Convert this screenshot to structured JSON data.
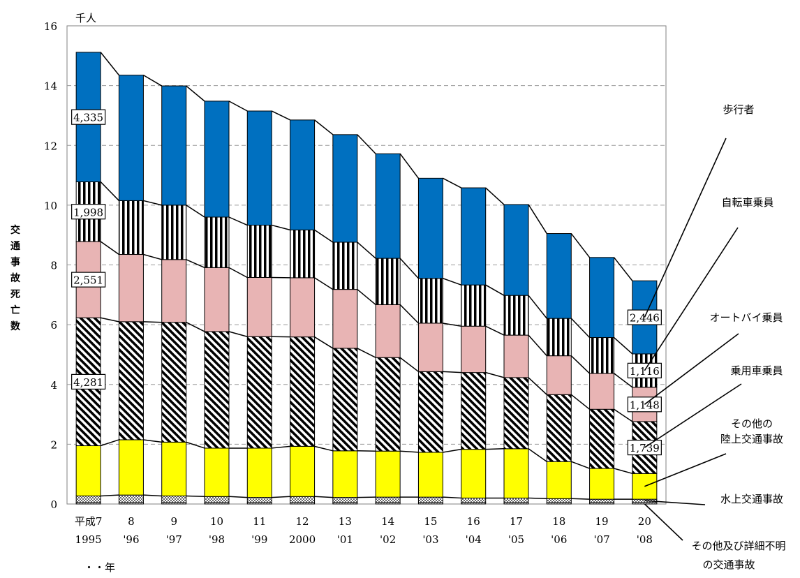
{
  "chart_data": {
    "type": "bar",
    "stacked": true,
    "title": "",
    "ylabel": "交通事故死亡数",
    "yunit": "千人",
    "ylim": [
      0,
      16
    ],
    "yticks": [
      "0",
      "2",
      "4",
      "6",
      "8",
      "10",
      "12",
      "14",
      "16"
    ],
    "grid": "horizontal-dashed",
    "categories": [
      {
        "top": "平成7",
        "bottom": "1995"
      },
      {
        "top": "8",
        "bottom": "'96"
      },
      {
        "top": "9",
        "bottom": "'97"
      },
      {
        "top": "10",
        "bottom": "'98"
      },
      {
        "top": "11",
        "bottom": "'99"
      },
      {
        "top": "12",
        "bottom": "2000"
      },
      {
        "top": "13",
        "bottom": "'01"
      },
      {
        "top": "14",
        "bottom": "'02"
      },
      {
        "top": "15",
        "bottom": "'03"
      },
      {
        "top": "16",
        "bottom": "'04"
      },
      {
        "top": "17",
        "bottom": "'05"
      },
      {
        "top": "18",
        "bottom": "'06"
      },
      {
        "top": "19",
        "bottom": "'07"
      },
      {
        "top": "20",
        "bottom": "'08"
      }
    ],
    "xunit": "・・年",
    "series": [
      {
        "name": "その他及び詳細不明の交通事故",
        "color": "#ffffff",
        "pattern": "cross",
        "values": [
          0.05,
          0.05,
          0.05,
          0.05,
          0.05,
          0.05,
          0.05,
          0.05,
          0.05,
          0.05,
          0.05,
          0.05,
          0.05,
          0.05
        ]
      },
      {
        "name": "水上交通事故",
        "color": "#ffffff",
        "pattern": "check",
        "values": [
          0.22,
          0.25,
          0.22,
          0.2,
          0.17,
          0.2,
          0.17,
          0.18,
          0.18,
          0.15,
          0.15,
          0.13,
          0.11,
          0.11
        ]
      },
      {
        "name": "その他の陸上交通事故",
        "color": "#ffff00",
        "pattern": "solid",
        "values": [
          1.68,
          1.85,
          1.8,
          1.62,
          1.65,
          1.68,
          1.56,
          1.54,
          1.5,
          1.63,
          1.65,
          1.24,
          1.03,
          0.86
        ]
      },
      {
        "name": "乗用車乗員",
        "color": "#ffffff",
        "pattern": "diagonal",
        "values": [
          4.281,
          3.95,
          4.01,
          3.9,
          3.73,
          3.66,
          3.43,
          3.13,
          2.7,
          2.57,
          2.38,
          2.24,
          1.98,
          1.739
        ]
      },
      {
        "name": "オートバイ乗員",
        "color": "#e8b4b4",
        "pattern": "solid",
        "values": [
          2.551,
          2.25,
          2.1,
          2.14,
          1.98,
          1.98,
          1.97,
          1.77,
          1.62,
          1.55,
          1.42,
          1.3,
          1.2,
          1.148
        ]
      },
      {
        "name": "自転車乗員",
        "color": "#ffffff",
        "pattern": "vertical",
        "values": [
          1.998,
          1.8,
          1.82,
          1.69,
          1.75,
          1.6,
          1.58,
          1.55,
          1.5,
          1.38,
          1.33,
          1.25,
          1.2,
          1.116
        ]
      },
      {
        "name": "歩行者",
        "color": "#0070c0",
        "pattern": "solid",
        "values": [
          4.335,
          4.2,
          3.99,
          3.88,
          3.82,
          3.68,
          3.6,
          3.5,
          3.35,
          3.25,
          3.04,
          2.84,
          2.68,
          2.446
        ]
      }
    ],
    "data_labels": [
      {
        "series": 6,
        "category": 0,
        "text": "4,335"
      },
      {
        "series": 5,
        "category": 0,
        "text": "1,998"
      },
      {
        "series": 4,
        "category": 0,
        "text": "2,551"
      },
      {
        "series": 3,
        "category": 0,
        "text": "4,281"
      },
      {
        "series": 6,
        "category": 13,
        "text": "2,446"
      },
      {
        "series": 5,
        "category": 13,
        "text": "1,116"
      },
      {
        "series": 4,
        "category": 13,
        "text": "1,148"
      },
      {
        "series": 3,
        "category": 13,
        "text": "1,739"
      }
    ],
    "legend": "right, callout lines to last bar"
  }
}
